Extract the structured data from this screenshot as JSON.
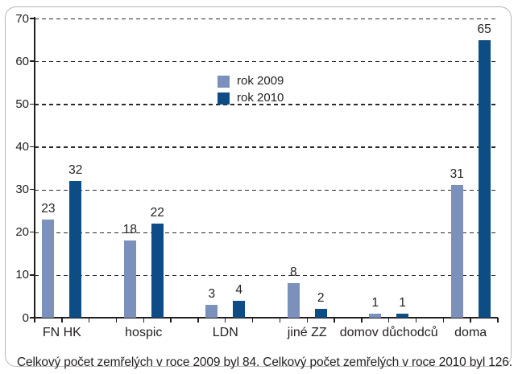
{
  "chart_data": {
    "type": "bar",
    "title": "",
    "xlabel": "",
    "ylabel": "",
    "categories": [
      "FN HK",
      "hospic",
      "LDN",
      "jiné ZZ",
      "domov důchodců",
      "doma"
    ],
    "series": [
      {
        "name": "rok 2009",
        "color": "#7b90bb",
        "values": [
          23,
          18,
          3,
          8,
          1,
          31
        ]
      },
      {
        "name": "rok 2010",
        "color": "#0d4c84",
        "values": [
          32,
          22,
          4,
          2,
          1,
          65
        ]
      }
    ],
    "ylim": [
      0,
      70
    ],
    "yticks": [
      0,
      10,
      20,
      30,
      40,
      50,
      60,
      70
    ],
    "grid": "horizontal dashed",
    "legend_position": "inside upper-center",
    "data_labels": true
  },
  "caption": "Celkový počet zemřelých v roce 2009 byl 84. Celkový počet zemřelých v roce 2010 byl 126.",
  "colors": {
    "series_2009": "#7b90bb",
    "series_2010": "#0d4c84",
    "grid_line": "#2b2a29",
    "axis_and_text": "#231f20",
    "card_border": "#b6b6b6",
    "background": "#ffffff"
  }
}
